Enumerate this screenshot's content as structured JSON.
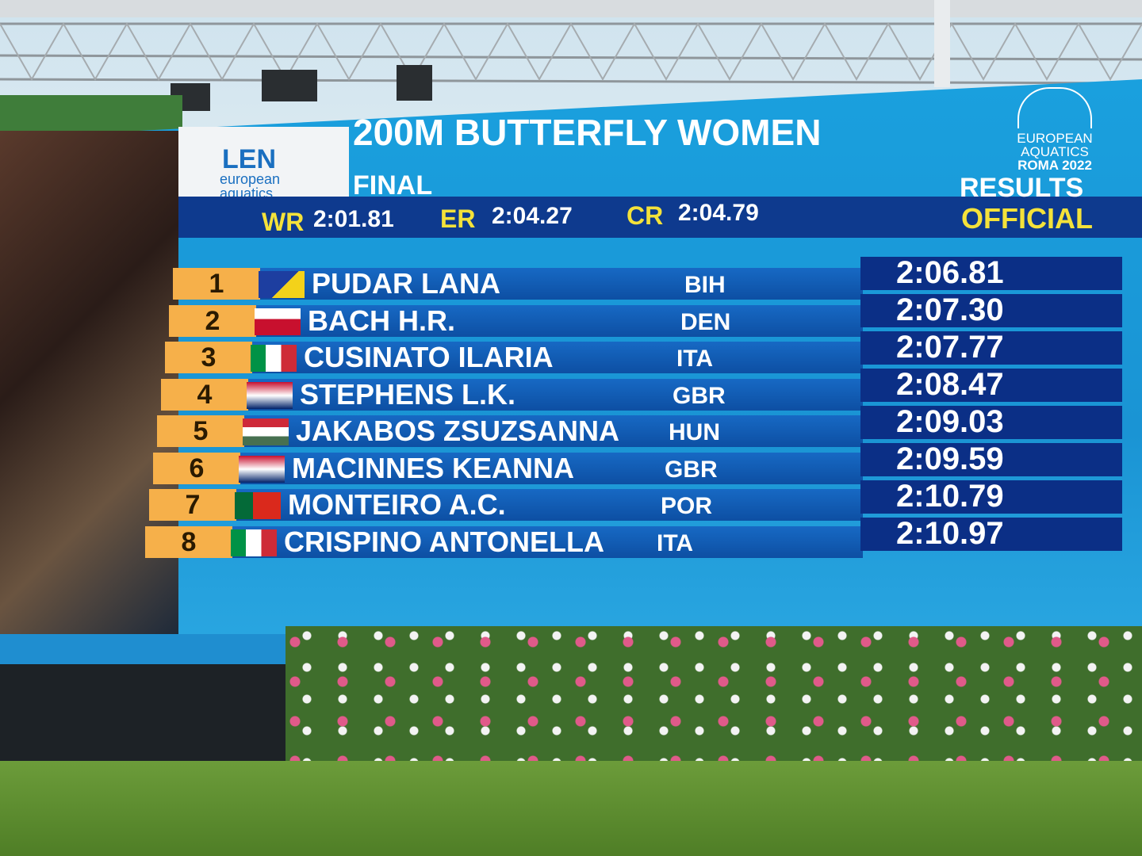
{
  "header": {
    "logo": [
      "LEN",
      "european",
      "aquatics"
    ],
    "title": "200M BUTTERFLY WOMEN",
    "round": "FINAL",
    "records": [
      {
        "label": "WR",
        "time": "2:01.81"
      },
      {
        "label": "ER",
        "time": "2:04.27"
      },
      {
        "label": "CR",
        "time": "2:04.79"
      }
    ],
    "status": "RESULTS",
    "official": "OFFICIAL",
    "event_logo": [
      "EUROPEAN",
      "AQUATICS",
      "ROMA 2022"
    ]
  },
  "results": [
    {
      "rank": 1,
      "name": "PUDAR LANA",
      "nation": "BIH",
      "time": "2:06.81"
    },
    {
      "rank": 2,
      "name": "BACH H.R.",
      "nation": "DEN",
      "time": "2:07.30"
    },
    {
      "rank": 3,
      "name": "CUSINATO ILARIA",
      "nation": "ITA",
      "time": "2:07.77"
    },
    {
      "rank": 4,
      "name": "STEPHENS L.K.",
      "nation": "GBR",
      "time": "2:08.47"
    },
    {
      "rank": 5,
      "name": "JAKABOS ZSUZSANNA",
      "nation": "HUN",
      "time": "2:09.03"
    },
    {
      "rank": 6,
      "name": "MACINNES KEANNA",
      "nation": "GBR",
      "time": "2:09.59"
    },
    {
      "rank": 7,
      "name": "MONTEIRO A.C.",
      "nation": "POR",
      "time": "2:10.79"
    },
    {
      "rank": 8,
      "name": "CRISPINO ANTONELLA",
      "nation": "ITA",
      "time": "2:10.97"
    }
  ]
}
